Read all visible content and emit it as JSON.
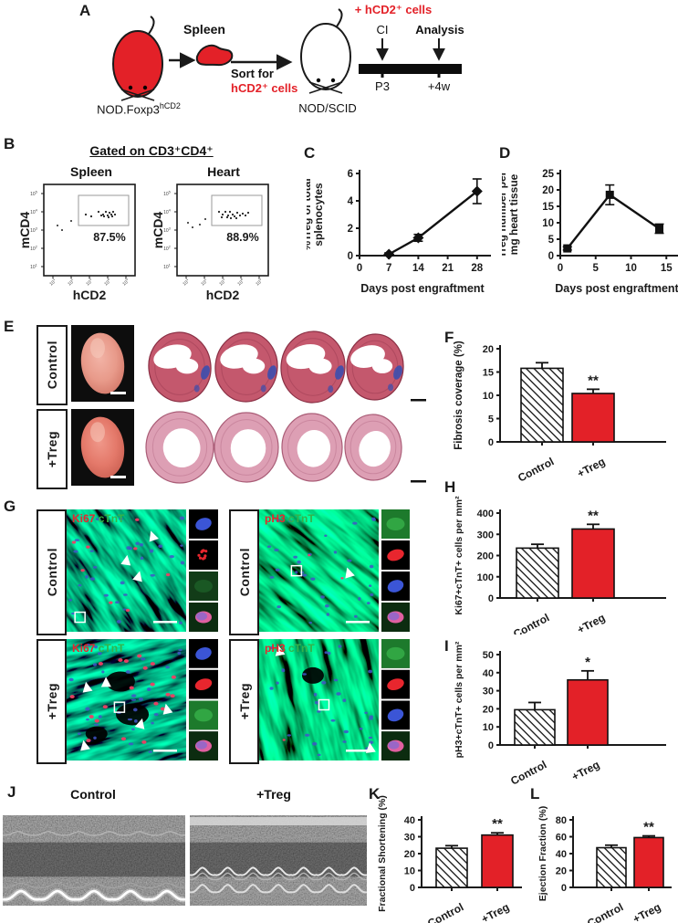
{
  "colors": {
    "accent_red": "#e32128",
    "stain_red": "#e8262e",
    "stain_green": "#35b24a",
    "nuclei_blue": "#4156c8",
    "histology_pink": "#dd9fb4",
    "histology_dark": "#c4586d"
  },
  "panel_a": {
    "label": "A",
    "mouse1_label_main": "NOD.Foxp3",
    "mouse1_label_sup": "hCD2",
    "spleen_label": "Spleen",
    "sort_line1": "Sort for",
    "sort_line2": "hCD2⁺ cells",
    "mouse2_label": "NOD/SCID",
    "timeline_top": "+ hCD2⁺ cells",
    "ci_label": "CI",
    "analysis_label": "Analysis",
    "p3_label": "P3",
    "plus4w_label": "+4w"
  },
  "panel_b": {
    "label": "B",
    "title": "Gated on CD3⁺CD4⁺",
    "plots": [
      {
        "title": "Spleen",
        "percent": "87.5%",
        "xlabel": "hCD2",
        "ylabel": "mCD4"
      },
      {
        "title": "Heart",
        "percent": "88.9%",
        "xlabel": "hCD2",
        "ylabel": "mCD4"
      }
    ],
    "log_tick_exponents": [
      1,
      2,
      3,
      4,
      5
    ]
  },
  "panel_e": {
    "label": "E",
    "rows": [
      {
        "name": "Control"
      },
      {
        "name": "+Treg"
      }
    ]
  },
  "panel_g": {
    "label": "G",
    "row_labels": [
      "Control",
      "+Treg"
    ],
    "left_stain": {
      "red": "Ki67",
      "green": "cTnT"
    },
    "right_stain": {
      "red": "pH3",
      "green": "cTnT"
    }
  },
  "panel_j": {
    "label": "J",
    "left_title": "Control",
    "right_title": "+Treg"
  },
  "chart_data": [
    {
      "id": "C",
      "panel_label": "C",
      "type": "line",
      "xlabel": "Days post engraftment",
      "ylabel_lines": [
        "%Treg of total",
        "splenocytes"
      ],
      "xlim": [
        0,
        30
      ],
      "ylim": [
        0,
        6
      ],
      "xticks": [
        0,
        7,
        14,
        21,
        28
      ],
      "yticks": [
        0,
        2,
        4,
        6
      ],
      "marker": "diamond",
      "x": [
        7,
        14,
        28
      ],
      "y": [
        0.1,
        1.3,
        4.7
      ],
      "yerr": [
        0.1,
        0.25,
        0.9
      ]
    },
    {
      "id": "D",
      "panel_label": "D",
      "type": "line",
      "xlabel": "Days post engraftment",
      "ylabel_lines": [
        "Treg number per",
        "mg heart tissue"
      ],
      "xlim": [
        0,
        16
      ],
      "ylim": [
        0,
        25
      ],
      "xticks": [
        0,
        5,
        10,
        15
      ],
      "yticks": [
        0,
        5,
        10,
        15,
        20,
        25
      ],
      "marker": "square",
      "x": [
        1,
        7,
        14
      ],
      "y": [
        2.2,
        18.5,
        8.2
      ],
      "yerr": [
        0.5,
        3.0,
        1.4
      ]
    },
    {
      "id": "F",
      "panel_label": "F",
      "type": "bar",
      "ylabel": "Fibrosis coverage (%)",
      "categories": [
        "Control",
        "+Treg"
      ],
      "values": [
        15.8,
        10.4
      ],
      "errors": [
        1.2,
        0.9
      ],
      "ylim": [
        0,
        20
      ],
      "yticks": [
        0,
        5,
        10,
        15,
        20
      ],
      "sig": [
        null,
        "**"
      ]
    },
    {
      "id": "H",
      "panel_label": "H",
      "type": "bar",
      "ylabel": "Ki67+cTnT+ cells per mm²",
      "categories": [
        "Control",
        "+Treg"
      ],
      "values": [
        235,
        325
      ],
      "errors": [
        18,
        22
      ],
      "ylim": [
        0,
        400
      ],
      "yticks": [
        0,
        100,
        200,
        300,
        400
      ],
      "sig": [
        null,
        "**"
      ]
    },
    {
      "id": "I",
      "panel_label": "I",
      "type": "bar",
      "ylabel": "pH3+cTnT+ cells per mm²",
      "categories": [
        "Control",
        "+Treg"
      ],
      "values": [
        19.5,
        36
      ],
      "errors": [
        4,
        5
      ],
      "ylim": [
        0,
        50
      ],
      "yticks": [
        0,
        10,
        20,
        30,
        40,
        50
      ],
      "sig": [
        null,
        "*"
      ]
    },
    {
      "id": "K",
      "panel_label": "K",
      "type": "bar",
      "ylabel": "Fractional Shortening (%)",
      "categories": [
        "Control",
        "+Treg"
      ],
      "values": [
        23.2,
        31
      ],
      "errors": [
        1.5,
        1.3
      ],
      "ylim": [
        0,
        40
      ],
      "yticks": [
        0,
        10,
        20,
        30,
        40
      ],
      "sig": [
        null,
        "**"
      ]
    },
    {
      "id": "L",
      "panel_label": "L",
      "type": "bar",
      "ylabel": "Ejection Fraction (%)",
      "categories": [
        "Control",
        "+Treg"
      ],
      "values": [
        47,
        59
      ],
      "errors": [
        3,
        2
      ],
      "ylim": [
        0,
        80
      ],
      "yticks": [
        0,
        20,
        40,
        60,
        80
      ],
      "sig": [
        null,
        "**"
      ]
    }
  ]
}
